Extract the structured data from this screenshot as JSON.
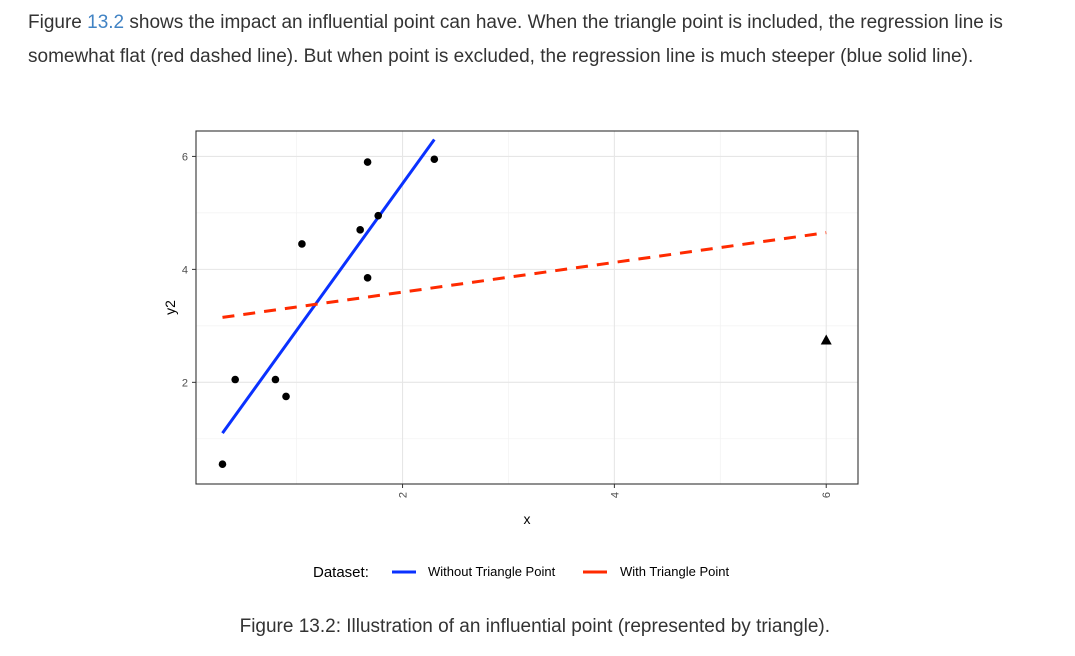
{
  "text": {
    "para_1_prefix": "Figure ",
    "para_1_link": "13.2",
    "para_1_suffix": " shows the impact an influential point can have. When the triangle point is included, the regression line is somewhat flat (red dashed line). But when point is excluded, the regression line is much steeper (blue solid line).",
    "caption": "Figure 13.2: Illustration of an influential point (represented by triangle)."
  },
  "colors": {
    "without": "#0a31ff",
    "with": "#ff2a00",
    "link": "#4183c4"
  },
  "chart_data": {
    "type": "scatter",
    "xlabel": "x",
    "ylabel": "y2",
    "xlim": [
      0.05,
      6.3
    ],
    "ylim": [
      0.2,
      6.45
    ],
    "x_ticks": [
      2,
      4,
      6
    ],
    "y_ticks": [
      2,
      4,
      6
    ],
    "grid": true,
    "legend_position": "bottom",
    "legend_title": "Dataset:",
    "points": [
      {
        "x": 0.3,
        "y": 0.55
      },
      {
        "x": 0.42,
        "y": 2.05
      },
      {
        "x": 0.8,
        "y": 2.05
      },
      {
        "x": 0.9,
        "y": 1.75
      },
      {
        "x": 1.05,
        "y": 4.45
      },
      {
        "x": 1.6,
        "y": 4.7
      },
      {
        "x": 1.67,
        "y": 5.9
      },
      {
        "x": 1.67,
        "y": 3.85
      },
      {
        "x": 1.77,
        "y": 4.95
      },
      {
        "x": 2.3,
        "y": 5.95
      }
    ],
    "influential_point": {
      "x": 6.0,
      "y": 2.75,
      "marker": "triangle"
    },
    "series": [
      {
        "name": "Without Triangle Point",
        "style": "solid",
        "x": [
          0.3,
          2.3
        ],
        "y": [
          1.1,
          6.3
        ]
      },
      {
        "name": "With Triangle Point",
        "style": "dashed",
        "x": [
          0.3,
          6.0
        ],
        "y": [
          3.15,
          4.65
        ]
      }
    ]
  }
}
